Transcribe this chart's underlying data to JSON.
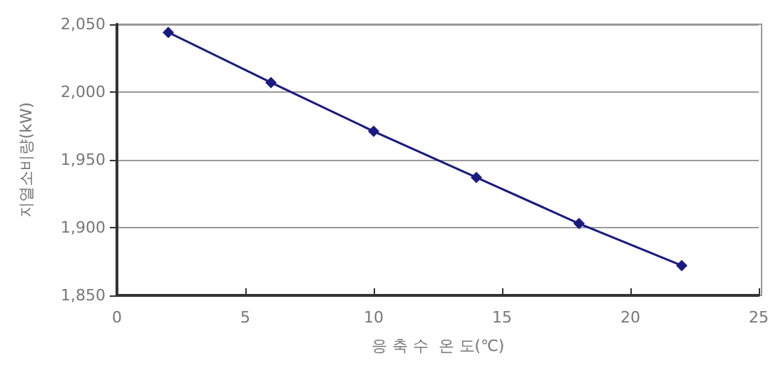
{
  "chart_data": {
    "type": "line",
    "xlabel": "응 축 수  온 도(℃)",
    "ylabel": "지열소비량(kW)",
    "x": [
      2,
      6,
      10,
      14,
      18,
      22
    ],
    "series": [
      {
        "color": "#1a1a80",
        "values": [
          2044,
          2007,
          1971,
          1937,
          1903,
          1872
        ]
      }
    ],
    "xlim": [
      0,
      25
    ],
    "xticks": [
      0,
      5,
      10,
      15,
      20,
      25
    ],
    "ylim": [
      1850,
      2050
    ],
    "yticks": [
      {
        "value": 1850,
        "label": "1,850"
      },
      {
        "value": 1900,
        "label": "1,900"
      },
      {
        "value": 1950,
        "label": "1,950"
      },
      {
        "value": 2000,
        "label": "2,000"
      },
      {
        "value": 2050,
        "label": "2,050"
      }
    ],
    "grid": "y",
    "marker": "diamond",
    "line_style": "solid"
  }
}
